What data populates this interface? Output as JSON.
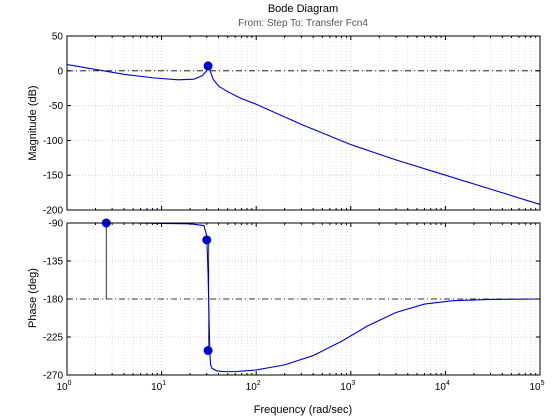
{
  "chart_data": {
    "type": "line",
    "title": "Bode Diagram",
    "subtitle": "From: Step  To: Transfer Fcn4",
    "xlabel": "Frequency  (rad/sec)",
    "x_scale": "log",
    "xlim": [
      1,
      100000
    ],
    "x_ticks": [
      {
        "base": "10",
        "exp": "0"
      },
      {
        "base": "10",
        "exp": "1"
      },
      {
        "base": "10",
        "exp": "2"
      },
      {
        "base": "10",
        "exp": "3"
      },
      {
        "base": "10",
        "exp": "4"
      },
      {
        "base": "10",
        "exp": "5"
      }
    ],
    "grid": true,
    "line_color": "#0000cc",
    "panels": [
      {
        "ylabel": "Magnitude (dB)",
        "ylim": [
          -200,
          50
        ],
        "y_ticks": [
          "50",
          "0",
          "-50",
          "-100",
          "-150",
          "-200"
        ],
        "reference_line": 0,
        "series": {
          "x": [
            1,
            2,
            4,
            8,
            15,
            22,
            27,
            30,
            31,
            32,
            35,
            40,
            50,
            70,
            100,
            300,
            1000,
            3000,
            10000,
            30000,
            100000
          ],
          "y": [
            9,
            2,
            -5,
            -10,
            -13,
            -12,
            -7,
            0,
            6,
            3,
            -12,
            -22,
            -30,
            -40,
            -48,
            -77,
            -106,
            -128,
            -150,
            -170,
            -192
          ]
        },
        "markers": [
          {
            "x": 31,
            "y": 7
          }
        ]
      },
      {
        "ylabel": "Phase (deg)",
        "ylim": [
          -270,
          -90
        ],
        "y_ticks": [
          "-90",
          "-135",
          "-180",
          "-225",
          "-270"
        ],
        "reference_line": -180,
        "series": {
          "x": [
            1,
            5,
            10,
            20,
            28,
            30,
            31,
            32,
            32.5,
            33,
            34,
            38,
            45,
            60,
            100,
            200,
            400,
            800,
            1500,
            3000,
            6000,
            12000,
            30000,
            100000
          ],
          "y": [
            -90,
            -90,
            -90.5,
            -91,
            -93,
            -105,
            -150,
            -220,
            -248,
            -258,
            -262,
            -265,
            -266,
            -266,
            -264,
            -258,
            -247,
            -230,
            -212,
            -196,
            -186,
            -182,
            -180.5,
            -180
          ]
        },
        "markers": [
          {
            "x": 2.6,
            "y": -90
          },
          {
            "x": 30,
            "y": -110
          },
          {
            "x": 31,
            "y": -241
          }
        ],
        "stems": [
          {
            "x": 2.6,
            "y_from": -90,
            "y_to": -180
          },
          {
            "x": 31.5,
            "y_from": -110,
            "y_to": -241
          }
        ]
      }
    ]
  }
}
